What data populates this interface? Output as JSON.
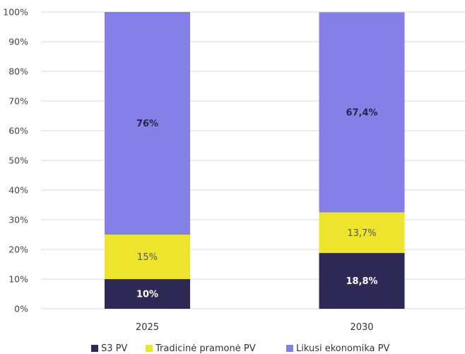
{
  "chart_data": {
    "type": "bar",
    "stacked": true,
    "categories": [
      "2025",
      "2030"
    ],
    "series": [
      {
        "name": "S3 PV",
        "values": [
          10,
          18.8
        ],
        "labels": [
          "10%",
          "18,8%"
        ],
        "color": "#2e2a55",
        "label_color": "#ffffff",
        "label_bold": true
      },
      {
        "name": "Tradicinė pramonė PV",
        "values": [
          15,
          13.7
        ],
        "labels": [
          "15%",
          "13,7%"
        ],
        "color": "#ede52d",
        "label_color": "#555555",
        "label_bold": false
      },
      {
        "name": "Likusi ekonomika PV",
        "values": [
          76,
          67.4
        ],
        "labels": [
          "76%",
          "67,4%"
        ],
        "color": "#8480e8",
        "label_color": "#26234d",
        "label_bold": true
      }
    ],
    "ylim": [
      0,
      100
    ],
    "yticks": [
      0,
      10,
      20,
      30,
      40,
      50,
      60,
      70,
      80,
      90,
      100
    ],
    "ytick_labels": [
      "0%",
      "10%",
      "20%",
      "30%",
      "40%",
      "50%",
      "60%",
      "70%",
      "80%",
      "90%",
      "100%"
    ],
    "grid": true,
    "legend_position": "bottom"
  }
}
